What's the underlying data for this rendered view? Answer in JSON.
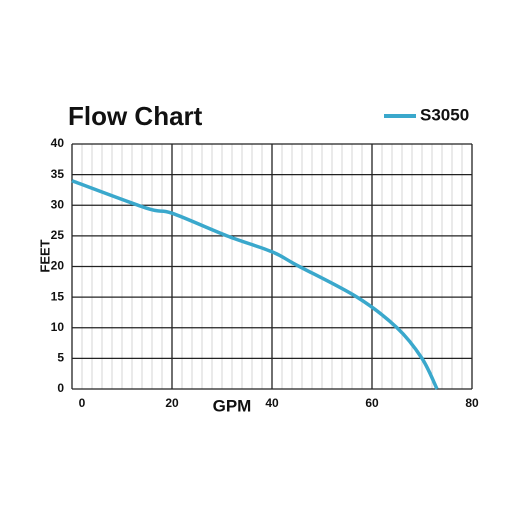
{
  "chart_data": {
    "type": "line",
    "title": "Flow Chart",
    "xlabel": "GPM",
    "ylabel": "FEET",
    "x": [
      0,
      15,
      20,
      31,
      40,
      45,
      57,
      65,
      70,
      73
    ],
    "series": [
      {
        "name": "S3050",
        "color": "#3aa8cc",
        "values": [
          34,
          29.5,
          28.7,
          25,
          22.4,
          20.2,
          15,
          10,
          5,
          0
        ]
      }
    ],
    "xlim": [
      0,
      80
    ],
    "xticks": [
      0,
      20,
      40,
      60,
      80
    ],
    "ylim": [
      0,
      40
    ],
    "yticks": [
      0,
      5,
      10,
      15,
      20,
      25,
      30,
      35,
      40
    ],
    "grid": true,
    "minor_grid": true,
    "legend": "top-right"
  }
}
